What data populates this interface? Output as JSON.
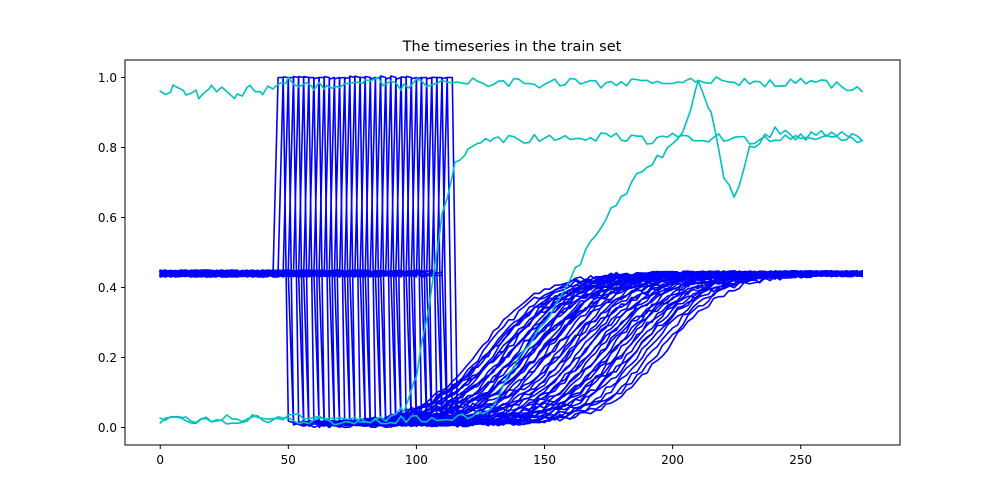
{
  "chart_data": {
    "type": "line",
    "title": "The timeseries in the train set",
    "xlabel": "",
    "ylabel": "",
    "xlim": [
      -13.75,
      288.75
    ],
    "ylim": [
      -0.05,
      1.05
    ],
    "xticks": [
      0,
      50,
      100,
      150,
      200,
      250
    ],
    "yticks": [
      0.0,
      0.2,
      0.4,
      0.6,
      0.8,
      1.0
    ],
    "ytick_labels": [
      "0.0",
      "0.2",
      "0.4",
      "0.6",
      "0.8",
      "1.0"
    ],
    "grid": false,
    "legend": "none",
    "colors": {
      "blue": "#0000ff",
      "cyan": "#00bfbf"
    },
    "series": [
      {
        "color": "#00bfbf",
        "x": [
          0,
          5,
          10,
          15,
          20,
          25,
          30,
          35,
          40,
          45,
          50,
          55,
          60,
          65,
          70,
          75,
          80,
          85,
          90,
          95,
          100,
          110,
          120,
          130,
          140,
          150,
          160,
          170,
          180,
          190,
          200,
          205,
          210,
          215,
          220,
          224,
          230,
          240,
          250,
          260,
          270,
          274
        ],
        "values": [
          0.95,
          0.97,
          0.96,
          0.95,
          0.97,
          0.96,
          0.95,
          0.97,
          0.96,
          0.97,
          0.99,
          0.98,
          0.97,
          0.98,
          0.97,
          0.98,
          0.99,
          0.99,
          0.98,
          0.97,
          0.99,
          0.98,
          0.99,
          0.98,
          0.99,
          0.98,
          0.99,
          0.98,
          0.99,
          0.98,
          0.99,
          0.99,
          1.0,
          0.99,
          0.99,
          0.98,
          0.99,
          0.98,
          0.99,
          0.98,
          0.97,
          0.96
        ]
      },
      {
        "color": "#00bfbf",
        "x": [
          0,
          5,
          10,
          20,
          30,
          40,
          50,
          60,
          70,
          80,
          90,
          95,
          100,
          105,
          110,
          115,
          120,
          125,
          130,
          140,
          150,
          160,
          170,
          180,
          190,
          200,
          210,
          220,
          230,
          240,
          250,
          260,
          270,
          274
        ],
        "values": [
          0.02,
          0.03,
          0.03,
          0.02,
          0.02,
          0.03,
          0.03,
          0.03,
          0.02,
          0.02,
          0.03,
          0.05,
          0.15,
          0.35,
          0.6,
          0.75,
          0.8,
          0.82,
          0.83,
          0.82,
          0.83,
          0.82,
          0.83,
          0.83,
          0.82,
          0.83,
          0.82,
          0.83,
          0.82,
          0.83,
          0.82,
          0.83,
          0.83,
          0.82
        ]
      },
      {
        "color": "#00bfbf",
        "x": [
          0,
          10,
          20,
          30,
          40,
          50,
          60,
          70,
          80,
          90,
          100,
          110,
          120,
          130,
          140,
          150,
          160,
          170,
          180,
          190,
          200,
          205,
          210,
          215,
          220,
          224,
          230,
          240,
          250,
          260,
          270,
          274
        ],
        "values": [
          0.02,
          0.02,
          0.02,
          0.03,
          0.02,
          0.02,
          0.02,
          0.02,
          0.02,
          0.02,
          0.03,
          0.02,
          0.03,
          0.06,
          0.2,
          0.3,
          0.42,
          0.55,
          0.66,
          0.75,
          0.8,
          0.86,
          1.0,
          0.9,
          0.72,
          0.65,
          0.8,
          0.85,
          0.83,
          0.84,
          0.83,
          0.82
        ]
      }
    ],
    "group_a": {
      "color": "#0000ff",
      "rise_x": [
        45,
        47,
        49,
        51,
        53,
        55,
        57,
        59,
        61,
        63,
        65,
        67,
        69,
        71,
        73,
        75,
        77,
        79,
        81,
        83,
        85,
        87,
        89,
        91,
        93,
        95,
        97,
        99,
        101,
        103,
        105,
        107,
        109,
        111
      ],
      "baseline": 0.44,
      "peak": 1.0,
      "tail": 0.01
    },
    "group_b": {
      "color": "#0000ff",
      "fall_x": [
        52,
        55,
        58,
        61,
        64,
        67,
        70,
        73,
        76,
        79,
        82,
        85,
        88,
        91,
        94,
        97,
        100,
        103,
        106,
        109,
        112
      ],
      "rise_center_x": [
        130,
        134,
        138,
        142,
        146,
        150,
        154,
        158,
        162,
        166,
        170,
        174,
        178,
        182,
        186
      ],
      "baseline": 0.44,
      "low": 0.01
    }
  }
}
